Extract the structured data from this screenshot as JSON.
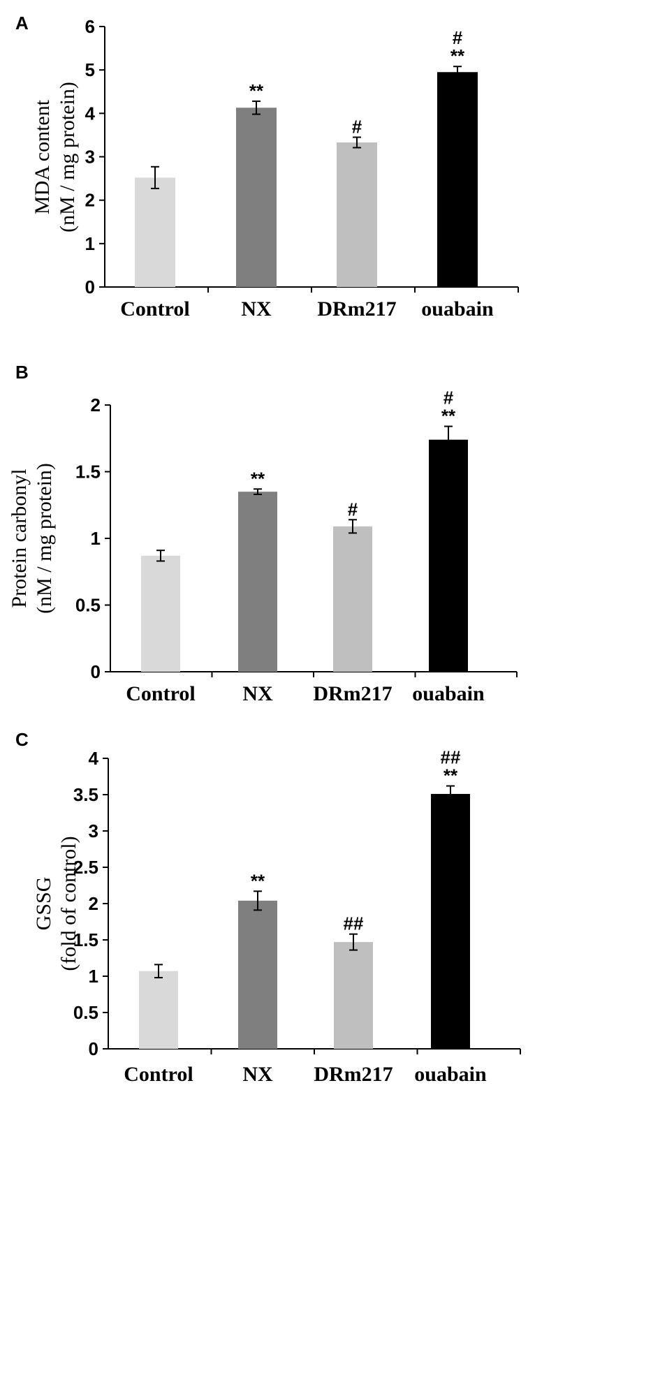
{
  "chart_data": [
    {
      "type": "bar",
      "panel": "A",
      "categories": [
        "Control",
        "NX",
        "DRm217",
        "ouabain"
      ],
      "values": [
        2.52,
        4.13,
        3.33,
        4.95
      ],
      "errors": [
        0.25,
        0.15,
        0.12,
        0.13
      ],
      "significance": [
        [
          "",
          ""
        ],
        [
          "",
          "**"
        ],
        [
          "",
          "#"
        ],
        [
          "#",
          "**"
        ]
      ],
      "colors": [
        "#d9d9d9",
        "#7f7f7f",
        "#bfbfbf",
        "#000000"
      ],
      "ylabel": [
        "MDA content",
        "(nM / mg protein)"
      ],
      "ylim": [
        0,
        6
      ],
      "yticks": [
        0,
        1,
        2,
        3,
        4,
        5,
        6
      ],
      "ytick_labels": [
        "0",
        "1",
        "2",
        "3",
        "4",
        "5",
        "6"
      ]
    },
    {
      "type": "bar",
      "panel": "B",
      "categories": [
        "Control",
        "NX",
        "DRm217",
        "ouabain"
      ],
      "values": [
        0.87,
        1.35,
        1.09,
        1.74
      ],
      "errors": [
        0.04,
        0.02,
        0.05,
        0.1
      ],
      "significance": [
        [
          "",
          ""
        ],
        [
          "",
          "**"
        ],
        [
          "",
          "#"
        ],
        [
          "#",
          "**"
        ]
      ],
      "colors": [
        "#d9d9d9",
        "#7f7f7f",
        "#bfbfbf",
        "#000000"
      ],
      "ylabel": [
        "Protein carbonyl",
        "(nM / mg protein)"
      ],
      "ylim": [
        0,
        2
      ],
      "yticks": [
        0,
        0.5,
        1,
        1.5,
        2
      ],
      "ytick_labels": [
        "0",
        "0.5",
        "1",
        "1.5",
        "2"
      ]
    },
    {
      "type": "bar",
      "panel": "C",
      "categories": [
        "Control",
        "NX",
        "DRm217",
        "ouabain"
      ],
      "values": [
        1.07,
        2.04,
        1.47,
        3.51
      ],
      "errors": [
        0.09,
        0.13,
        0.11,
        0.11
      ],
      "significance": [
        [
          "",
          ""
        ],
        [
          "",
          "**"
        ],
        [
          "",
          "##"
        ],
        [
          "##",
          "**"
        ]
      ],
      "colors": [
        "#d9d9d9",
        "#7f7f7f",
        "#bfbfbf",
        "#000000"
      ],
      "ylabel": [
        "GSSG",
        "(fold of control)"
      ],
      "ylim": [
        0,
        4
      ],
      "yticks": [
        0,
        0.5,
        1,
        1.5,
        2,
        2.5,
        3,
        3.5,
        4
      ],
      "ytick_labels": [
        "0",
        "0.5",
        "1",
        "1.5",
        "2",
        "2.5",
        "3",
        "3.5",
        "4"
      ]
    }
  ]
}
